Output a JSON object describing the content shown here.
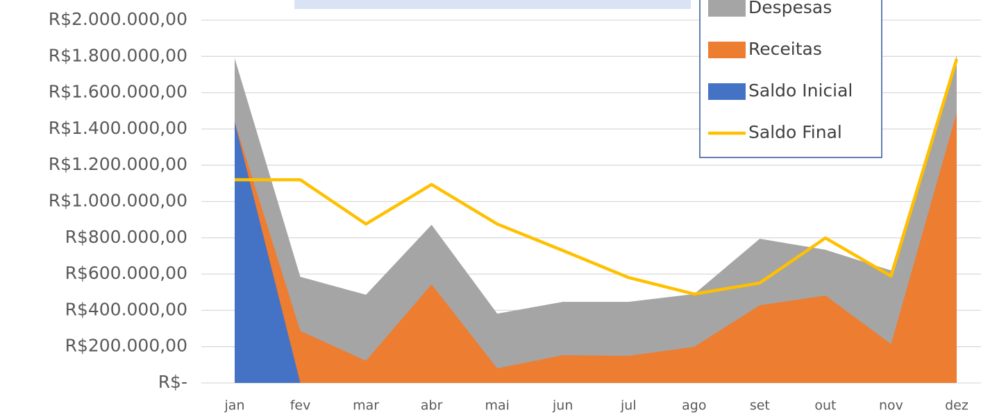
{
  "chart_data": {
    "type": "area",
    "categories": [
      "jan",
      "fev",
      "mar",
      "abr",
      "mai",
      "jun",
      "jul",
      "ago",
      "set",
      "out",
      "nov",
      "dez"
    ],
    "series": [
      {
        "name": "Despesas",
        "color": "#a5a5a5",
        "values": [
          1790000,
          585000,
          486000,
          872000,
          382000,
          447000,
          447000,
          490000,
          795000,
          734000,
          620000,
          1805000
        ]
      },
      {
        "name": "Receitas",
        "color": "#ed7d31",
        "values": [
          1440000,
          287000,
          122000,
          543000,
          80000,
          153000,
          149000,
          199000,
          428000,
          482000,
          214000,
          1490000
        ]
      },
      {
        "name": "Saldo Inicial",
        "color": "#4472c4",
        "values": [
          1440000,
          0,
          0,
          0,
          0,
          0,
          0,
          0,
          0,
          0,
          0,
          0
        ]
      },
      {
        "name": "Saldo Final",
        "type": "line",
        "color": "#ffc000",
        "values": [
          1120000,
          1120000,
          876000,
          1094000,
          876000,
          730000,
          581000,
          490000,
          551000,
          799000,
          589000,
          1786000
        ]
      }
    ],
    "ylim": [
      0,
      2000000
    ],
    "yticks": [
      {
        "value": 0,
        "label": "R$-"
      },
      {
        "value": 200000,
        "label": "R$200.000,00"
      },
      {
        "value": 400000,
        "label": "R$400.000,00"
      },
      {
        "value": 600000,
        "label": "R$600.000,00"
      },
      {
        "value": 800000,
        "label": "R$800.000,00"
      },
      {
        "value": 1000000,
        "label": "R$1.000.000,00"
      },
      {
        "value": 1200000,
        "label": "R$1.200.000,00"
      },
      {
        "value": 1400000,
        "label": "R$1.400.000,00"
      },
      {
        "value": 1600000,
        "label": "R$1.600.000,00"
      },
      {
        "value": 1800000,
        "label": "R$1.800.000,00"
      },
      {
        "value": 2000000,
        "label": "R$2.000.000,00"
      }
    ],
    "grid": true,
    "legend": "top-right"
  }
}
